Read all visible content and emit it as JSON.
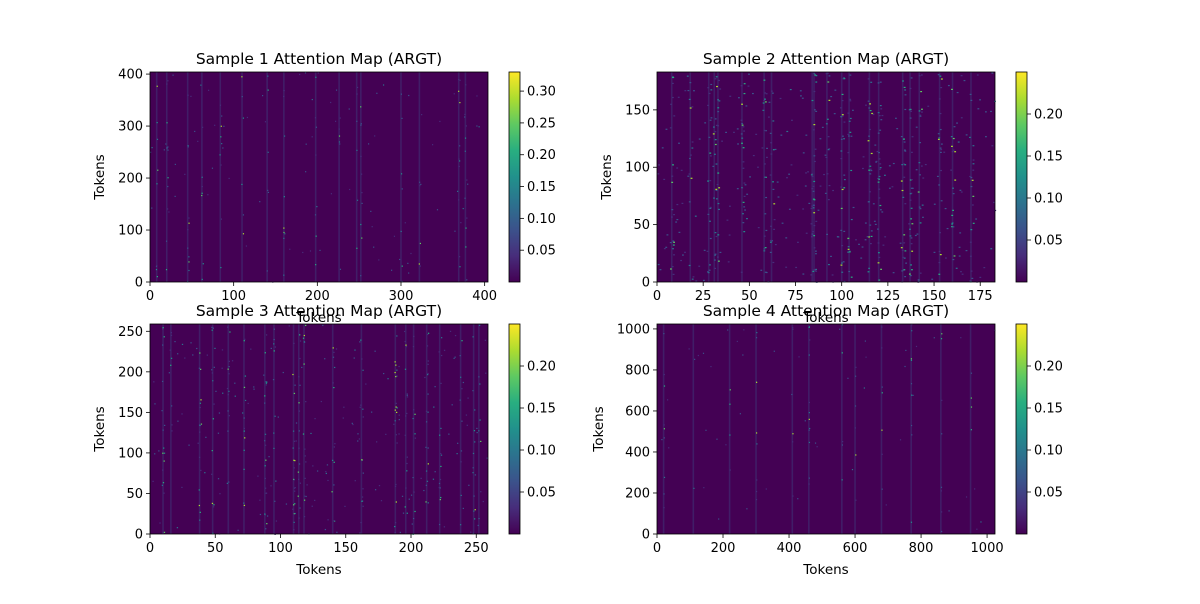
{
  "chart_data": [
    {
      "type": "heatmap",
      "title": "Sample 1 Attention Map (ARGT)",
      "xlabel": "Tokens",
      "ylabel": "Tokens",
      "xlim": [
        0,
        404
      ],
      "ylim": [
        0,
        404
      ],
      "xticks": [
        0,
        100,
        200,
        300,
        400
      ],
      "yticks": [
        0,
        100,
        200,
        300,
        400
      ],
      "colorbar": {
        "colormap": "viridis",
        "min": 0,
        "max": 0.33,
        "ticks": [
          "0.05",
          "0.10",
          "0.15",
          "0.20",
          "0.25",
          "0.30"
        ]
      },
      "background": "#440154",
      "hot_columns": [
        8,
        20,
        45,
        62,
        84,
        110,
        140,
        160,
        198,
        226,
        247,
        252,
        300,
        322,
        369,
        377
      ]
    },
    {
      "type": "heatmap",
      "title": "Sample 2 Attention Map (ARGT)",
      "xlabel": "Tokens",
      "ylabel": "Tokens",
      "xlim": [
        0,
        183
      ],
      "ylim": [
        0,
        183
      ],
      "xticks": [
        0,
        25,
        50,
        75,
        100,
        125,
        150,
        175
      ],
      "yticks": [
        0,
        50,
        100,
        150
      ],
      "colorbar": {
        "colormap": "viridis",
        "min": 0,
        "max": 0.25,
        "ticks": [
          "0.05",
          "0.10",
          "0.15",
          "0.20"
        ]
      },
      "background": "#440154",
      "hot_columns": [
        8,
        18,
        28,
        31,
        33,
        46,
        58,
        62,
        84,
        85,
        92,
        100,
        104,
        115,
        120,
        133,
        137,
        142,
        153,
        160,
        170
      ]
    },
    {
      "type": "heatmap",
      "title": "Sample 3 Attention Map (ARGT)",
      "xlabel": "Tokens",
      "ylabel": "Tokens",
      "xlim": [
        0,
        259
      ],
      "ylim": [
        0,
        259
      ],
      "xticks": [
        0,
        50,
        100,
        150,
        200,
        250
      ],
      "yticks": [
        0,
        50,
        100,
        150,
        200,
        250
      ],
      "colorbar": {
        "colormap": "viridis",
        "min": 0,
        "max": 0.25,
        "ticks": [
          "0.05",
          "0.10",
          "0.15",
          "0.20"
        ]
      },
      "background": "#440154",
      "hot_columns": [
        10,
        16,
        38,
        48,
        60,
        72,
        88,
        95,
        110,
        114,
        118,
        140,
        162,
        188,
        196,
        202,
        212,
        222,
        238,
        248,
        252
      ]
    },
    {
      "type": "heatmap",
      "title": "Sample 4 Attention Map (ARGT)",
      "xlabel": "Tokens",
      "ylabel": "Tokens",
      "xlim": [
        0,
        1024
      ],
      "ylim": [
        0,
        1024
      ],
      "xticks": [
        0,
        200,
        400,
        600,
        800,
        1000
      ],
      "yticks": [
        0,
        200,
        400,
        600,
        800,
        1000
      ],
      "colorbar": {
        "colormap": "viridis",
        "min": 0,
        "max": 0.25,
        "ticks": [
          "0.05",
          "0.10",
          "0.15",
          "0.20"
        ]
      },
      "background": "#440154",
      "hot_columns": [
        20,
        110,
        220,
        300,
        410,
        460,
        560,
        600,
        680,
        770,
        860,
        950
      ]
    }
  ]
}
